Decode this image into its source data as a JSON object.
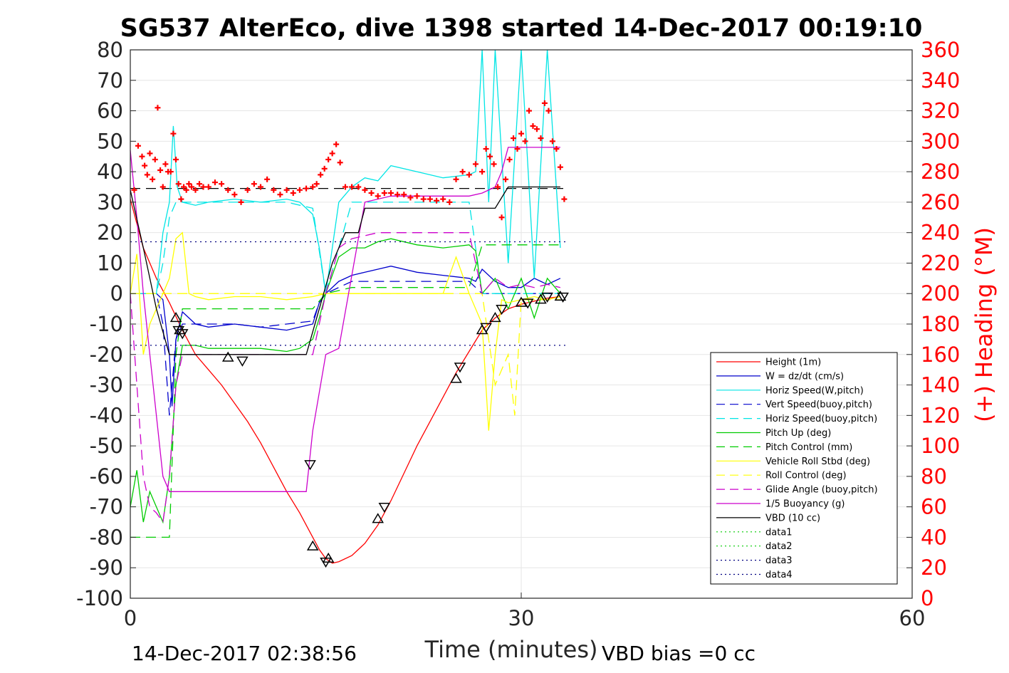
{
  "chart_data": {
    "type": "line",
    "title": "SG537 AlterEco, dive 1398 started 14-Dec-2017 00:19:10",
    "xlabel": "Time (minutes)",
    "ylabel": "",
    "y2label": "(+) Heading (°M)",
    "xlim": [
      0,
      60
    ],
    "ylim": [
      -100,
      80
    ],
    "y2lim": [
      0,
      360
    ],
    "x_ticks": [
      "0",
      "30",
      "60"
    ],
    "y_ticks": [
      "80",
      "70",
      "60",
      "50",
      "40",
      "30",
      "20",
      "10",
      "0",
      "-10",
      "-20",
      "-30",
      "-40",
      "-50",
      "-60",
      "-70",
      "-80",
      "-90",
      "-100"
    ],
    "y2_ticks": [
      "360",
      "340",
      "320",
      "300",
      "280",
      "260",
      "240",
      "220",
      "200",
      "180",
      "160",
      "140",
      "120",
      "100",
      "80",
      "60",
      "40",
      "20",
      "0"
    ],
    "grid": true,
    "legend_position": "right",
    "footer_left": "14-Dec-2017 02:38:56",
    "footer_right": "VBD bias =0 cc",
    "colors": {
      "red": "#ff0000",
      "blue": "#0000cc",
      "cyan": "#00e5e5",
      "green": "#00cc00",
      "yellow": "#ffff00",
      "magenta": "#cc00cc",
      "black": "#000000",
      "darkblue": "#000080"
    },
    "series": [
      {
        "name": "Height (1m)",
        "color": "#ff0000",
        "dash": "solid",
        "axis": "left",
        "x": [
          0,
          1,
          2,
          3,
          4,
          5,
          6,
          7,
          8,
          9,
          10,
          11,
          12,
          13,
          14,
          14.5,
          15,
          15.5,
          16,
          17,
          18,
          19,
          20,
          21,
          22,
          23,
          24,
          25,
          26,
          27,
          28,
          29,
          30,
          31,
          32,
          33
        ],
        "y": [
          31,
          15,
          5,
          -3,
          -12,
          -20,
          -25,
          -30,
          -36,
          -42,
          -49,
          -57,
          -65,
          -72,
          -80,
          -84,
          -87,
          -88.5,
          -88,
          -86,
          -82,
          -76,
          -68,
          -59,
          -50,
          -42,
          -34,
          -26,
          -19,
          -12,
          -8,
          -5,
          -3.5,
          -2.5,
          -1.5,
          -1
        ]
      },
      {
        "name": "W = dz/dt (cm/s)",
        "color": "#0000cc",
        "dash": "solid",
        "axis": "left",
        "x": [
          0,
          1,
          2,
          2.5,
          3,
          3.2,
          3.5,
          4,
          5,
          6,
          8,
          10,
          12,
          13,
          14,
          14.5,
          15,
          16,
          17,
          18,
          19,
          20,
          22,
          24,
          26,
          26.5,
          27,
          28,
          29,
          30,
          31,
          32,
          33
        ],
        "y": [
          0,
          0,
          0,
          -2,
          -20,
          -37,
          -15,
          -6,
          -10,
          -11,
          -10,
          -11,
          -12,
          -11,
          -10,
          -3,
          0,
          4,
          6,
          7,
          8,
          9,
          7,
          6,
          5,
          4,
          8,
          4,
          2,
          2,
          5,
          3,
          5
        ]
      },
      {
        "name": "Horiz Speed(W,pitch)",
        "color": "#00e5e5",
        "dash": "solid",
        "axis": "left",
        "x": [
          0,
          1,
          2,
          2.5,
          3,
          3.3,
          3.6,
          4,
          5,
          6,
          8,
          10,
          12,
          13,
          14,
          14.5,
          15,
          16,
          17,
          18,
          19,
          20,
          22,
          24,
          26,
          26.5,
          27,
          27.5,
          28,
          29,
          30,
          31,
          32,
          33
        ],
        "y": [
          0,
          0,
          0,
          20,
          30,
          55,
          35,
          30,
          29,
          30,
          31,
          30,
          31,
          30,
          26,
          15,
          0,
          30,
          35,
          38,
          37,
          42,
          40,
          38,
          39,
          40,
          80,
          30,
          80,
          10,
          80,
          5,
          80,
          15
        ]
      },
      {
        "name": "Vert Speed(buoy,pitch)",
        "color": "#0000cc",
        "dash": "long",
        "axis": "left",
        "x": [
          0,
          1,
          2,
          2.5,
          3,
          3.5,
          4,
          6,
          8,
          10,
          12,
          14,
          14.5,
          15,
          17,
          19,
          21,
          23,
          25,
          26,
          27,
          29,
          31,
          33
        ],
        "y": [
          0,
          0,
          0,
          -10,
          -40,
          -15,
          -10,
          -10,
          -10,
          -11,
          -10,
          -9,
          -3,
          0,
          4,
          4,
          4,
          4,
          4,
          4,
          0,
          0,
          0,
          0
        ]
      },
      {
        "name": "Horiz Speed(buoy,pitch)",
        "color": "#00e5e5",
        "dash": "long",
        "axis": "left",
        "x": [
          0,
          1,
          2,
          2.5,
          3,
          3.5,
          4,
          6,
          8,
          10,
          12,
          14,
          15,
          17,
          19,
          21,
          23,
          25,
          26,
          27,
          29,
          31,
          33
        ],
        "y": [
          0,
          0,
          0,
          10,
          25,
          30,
          30,
          30,
          30,
          30,
          30,
          28,
          0,
          30,
          30,
          30,
          30,
          30,
          30,
          0,
          0,
          0,
          0
        ]
      },
      {
        "name": "Pitch Up (deg)",
        "color": "#00cc00",
        "dash": "solid",
        "axis": "left",
        "x": [
          0,
          0.5,
          1,
          1.5,
          2,
          2.5,
          3,
          3.5,
          4,
          5,
          6,
          8,
          10,
          12,
          13,
          14,
          14.5,
          15,
          16,
          17,
          18,
          19,
          20,
          22,
          24,
          26,
          26.5,
          27,
          28,
          29,
          30,
          31,
          32,
          33
        ],
        "y": [
          -70,
          -58,
          -75,
          -65,
          -70,
          -75,
          -60,
          -30,
          -17,
          -17,
          -18,
          -18,
          -18,
          -19,
          -18,
          -15,
          -8,
          0,
          12,
          15,
          15,
          17,
          18,
          16,
          15,
          16,
          14,
          0,
          5,
          -5,
          5,
          -8,
          5,
          0
        ]
      },
      {
        "name": "Pitch Control (mm)",
        "color": "#00cc00",
        "dash": "long",
        "axis": "left",
        "x": [
          0,
          1,
          2,
          2.5,
          3,
          3.5,
          4,
          6,
          8,
          10,
          12,
          14,
          15,
          17,
          19,
          21,
          23,
          25,
          26,
          27,
          29,
          31,
          33
        ],
        "y": [
          -80,
          -80,
          -80,
          -80,
          -80,
          -20,
          -5,
          -5,
          -5,
          -5,
          -5,
          -5,
          0,
          2,
          2,
          2,
          2,
          2,
          2,
          16,
          16,
          16,
          16
        ]
      },
      {
        "name": "Vehicle Roll Stbd (deg)",
        "color": "#ffff00",
        "dash": "solid",
        "axis": "left",
        "x": [
          0,
          0.5,
          1,
          1.5,
          2,
          2.5,
          3,
          3.5,
          4,
          4.5,
          5,
          6,
          8,
          10,
          12,
          14,
          15,
          16,
          18,
          20,
          22,
          24,
          25,
          26,
          27,
          27.5,
          28,
          28.5,
          29,
          30,
          31,
          32,
          33
        ],
        "y": [
          0,
          13,
          -20,
          -10,
          -5,
          0,
          5,
          18,
          20,
          0,
          -1,
          -2,
          -1,
          -1,
          -2,
          -1,
          0,
          0,
          0,
          0,
          0,
          0,
          12,
          0,
          -10,
          -45,
          -20,
          -2,
          -3,
          -2,
          -1,
          -2,
          -1
        ]
      },
      {
        "name": "Roll Control (deg)",
        "color": "#ffff00",
        "dash": "long",
        "axis": "left",
        "x": [
          0,
          1,
          2,
          3,
          4,
          5,
          10,
          15,
          20,
          25,
          26,
          27,
          28,
          29,
          29.5,
          30,
          33
        ],
        "y": [
          0,
          0,
          0,
          0,
          0,
          0,
          0,
          0,
          0,
          0,
          0,
          0,
          -30,
          -20,
          -40,
          -2,
          -2
        ]
      },
      {
        "name": "Glide Angle (buoy,pitch)",
        "color": "#cc00cc",
        "dash": "long",
        "axis": "left",
        "x": [
          0,
          0.5,
          1,
          1.5,
          2,
          2.5,
          3,
          3.5,
          4,
          5,
          6,
          8,
          10,
          12,
          14,
          15,
          16,
          17,
          18,
          19,
          20,
          22,
          24,
          26,
          27,
          28,
          29,
          30,
          31,
          32,
          33
        ],
        "y": [
          0,
          -30,
          -60,
          -70,
          -72,
          -75,
          -60,
          -30,
          -20,
          -20,
          -20,
          -20,
          -20,
          -20,
          -20,
          0,
          15,
          18,
          19,
          20,
          20,
          20,
          20,
          20,
          0,
          5,
          2,
          3,
          2,
          3,
          2
        ]
      },
      {
        "name": "1/5 Buoyancy (g)",
        "color": "#cc00cc",
        "dash": "solid",
        "axis": "left",
        "x": [
          0,
          0.5,
          1,
          1.5,
          2,
          2.5,
          3,
          8,
          13.5,
          14,
          15,
          16,
          18,
          20,
          22,
          24,
          26,
          27,
          28,
          28.5,
          29,
          30,
          33
        ],
        "y": [
          47,
          25,
          0,
          -20,
          -40,
          -60,
          -65,
          -65,
          -65,
          -45,
          -20,
          -18,
          30,
          32,
          32,
          32,
          32,
          33,
          35,
          40,
          48,
          48,
          48
        ]
      },
      {
        "name": "VBD (10 cc)",
        "color": "#000000",
        "dash": "solid",
        "axis": "left",
        "x": [
          0,
          1,
          2,
          3,
          4,
          6,
          8,
          10,
          12,
          13.5,
          14.5,
          15.5,
          16.5,
          17.5,
          18,
          19,
          20,
          22,
          24,
          26,
          27,
          28,
          29,
          30,
          33
        ],
        "y": [
          34,
          15,
          -5,
          -20,
          -20,
          -20,
          -20,
          -20,
          -20,
          -20,
          -5,
          10,
          20,
          20,
          28,
          28,
          28,
          28,
          28,
          28,
          28,
          28,
          35,
          35,
          35
        ]
      },
      {
        "name": "data1",
        "color": "#00cc00",
        "dash": "dot",
        "axis": "left",
        "x": [],
        "y": []
      },
      {
        "name": "data2",
        "color": "#00cc00",
        "dash": "dot",
        "axis": "left",
        "x": [],
        "y": []
      },
      {
        "name": "data3",
        "color": "#000080",
        "dash": "dot",
        "axis": "left",
        "x": [
          0,
          33.5
        ],
        "y": [
          17,
          17
        ]
      },
      {
        "name": "data4",
        "color": "#000080",
        "dash": "dot",
        "axis": "left",
        "x": [
          0,
          33.5
        ],
        "y": [
          -17,
          -17
        ]
      }
    ],
    "reference_lines": [
      {
        "color": "#000000",
        "dash": "long",
        "x": [
          0,
          33.5
        ],
        "y": [
          34.5,
          34.5
        ]
      }
    ],
    "heading_points": {
      "color": "#ff0000",
      "axis": "right",
      "x": [
        0.3,
        0.6,
        0.9,
        1.1,
        1.3,
        1.5,
        1.7,
        1.9,
        2.1,
        2.3,
        2.5,
        2.7,
        2.9,
        3.1,
        3.3,
        3.5,
        3.7,
        3.9,
        4.1,
        4.3,
        4.5,
        4.7,
        5.0,
        5.3,
        5.6,
        6.0,
        6.5,
        7.0,
        7.5,
        8.0,
        8.5,
        9.0,
        9.5,
        10.0,
        10.5,
        11.0,
        11.5,
        12.0,
        12.5,
        13.0,
        13.5,
        14.0,
        14.3,
        14.6,
        14.9,
        15.2,
        15.5,
        15.8,
        16.1,
        16.5,
        17.0,
        17.5,
        18.0,
        18.5,
        19.0,
        19.5,
        20.0,
        20.5,
        21.0,
        21.5,
        22.0,
        22.5,
        23.0,
        23.5,
        24.0,
        24.5,
        25.0,
        25.5,
        26.0,
        26.5,
        27.0,
        27.3,
        27.6,
        27.9,
        28.2,
        28.5,
        28.8,
        29.1,
        29.4,
        29.7,
        30.0,
        30.3,
        30.6,
        30.9,
        31.2,
        31.5,
        31.8,
        32.1,
        32.4,
        32.7,
        33.0,
        33.3
      ],
      "y": [
        268,
        297,
        290,
        284,
        278,
        292,
        275,
        288,
        322,
        281,
        270,
        285,
        280,
        280,
        305,
        288,
        272,
        262,
        270,
        268,
        272,
        270,
        268,
        272,
        270,
        270,
        273,
        272,
        268,
        265,
        260,
        268,
        272,
        270,
        275,
        268,
        265,
        268,
        266,
        268,
        269,
        270,
        272,
        278,
        282,
        288,
        292,
        298,
        286,
        270,
        270,
        270,
        268,
        266,
        264,
        266,
        266,
        265,
        265,
        263,
        264,
        262,
        262,
        261,
        262,
        260,
        275,
        280,
        278,
        285,
        280,
        295,
        290,
        285,
        270,
        250,
        275,
        288,
        302,
        295,
        305,
        300,
        320,
        310,
        308,
        302,
        325,
        320,
        300,
        295,
        283,
        262
      ]
    },
    "markers": [
      {
        "kind": "up",
        "x": [
          3.5,
          3.8,
          7.5,
          14.0,
          15.2,
          19.0,
          25.0,
          27.0,
          28.0,
          30.0,
          31.5,
          33.0
        ],
        "y": [
          -8,
          -12,
          -21,
          -83,
          -87,
          -74,
          -28,
          -12,
          -8,
          -3,
          -2,
          -1
        ]
      },
      {
        "kind": "down",
        "x": [
          3.7,
          4.0,
          8.6,
          13.8,
          15.0,
          19.5,
          25.3,
          27.3,
          28.5,
          30.5,
          32.0,
          33.2
        ],
        "y": [
          -12,
          -13,
          -22,
          -56,
          -88,
          -70,
          -24,
          -11,
          -5,
          -3,
          -1,
          -1
        ]
      }
    ]
  }
}
